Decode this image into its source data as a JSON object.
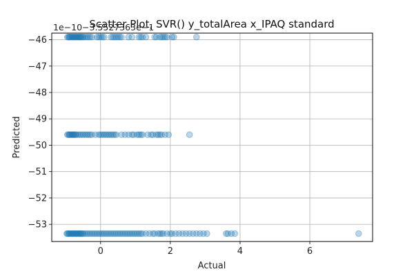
{
  "chart_data": {
    "type": "scatter",
    "title": "Scatter Plot, SVR() y_totalArea x_IPAQ standard",
    "xlabel": "Actual",
    "ylabel": "Predicted",
    "y_offset_label": "1e−10−3.5527363e−1",
    "xlim": [
      -1.4,
      7.8
    ],
    "ylim": [
      -53.65,
      -45.75
    ],
    "xticks": [
      0,
      2,
      4,
      6
    ],
    "xtick_labels": [
      "0",
      "2",
      "4",
      "6"
    ],
    "yticks": [
      -46,
      -47,
      -48,
      -49,
      -50,
      -51,
      -52,
      -53
    ],
    "ytick_labels": [
      "−46",
      "−47",
      "−48",
      "−49",
      "−50",
      "−51",
      "−52",
      "−53"
    ],
    "grid": true,
    "marker_color": "#1f77b4",
    "marker_alpha": 0.3,
    "series": [
      {
        "x": [
          -0.95,
          -0.92,
          -0.9,
          -0.88,
          -0.85,
          -0.82,
          -0.8,
          -0.78,
          -0.75,
          -0.72,
          -0.7,
          -0.68,
          -0.65,
          -0.62,
          -0.6,
          -0.58,
          -0.55,
          -0.52,
          -0.5,
          -0.45,
          -0.4,
          -0.35,
          -0.3,
          -0.25,
          -0.1,
          -0.05,
          0.0,
          0.05,
          0.1,
          0.3,
          0.35,
          0.4,
          0.45,
          0.5,
          0.55,
          0.6,
          0.8,
          0.9,
          1.1,
          1.15,
          1.2,
          1.3,
          1.55,
          1.6,
          1.7,
          1.75,
          1.8,
          1.85,
          1.9,
          2.05,
          2.1,
          2.75
        ],
        "y": [
          -45.9,
          -45.9,
          -45.9,
          -45.9,
          -45.9,
          -45.9,
          -45.9,
          -45.9,
          -45.9,
          -45.9,
          -45.9,
          -45.9,
          -45.9,
          -45.9,
          -45.9,
          -45.9,
          -45.9,
          -45.9,
          -45.9,
          -45.9,
          -45.9,
          -45.9,
          -45.9,
          -45.9,
          -45.9,
          -45.9,
          -45.9,
          -45.9,
          -45.9,
          -45.9,
          -45.9,
          -45.9,
          -45.9,
          -45.9,
          -45.9,
          -45.9,
          -45.9,
          -45.9,
          -45.9,
          -45.9,
          -45.9,
          -45.9,
          -45.9,
          -45.9,
          -45.9,
          -45.9,
          -45.9,
          -45.9,
          -45.9,
          -45.9,
          -45.9,
          -45.9
        ]
      },
      {
        "x": [
          -0.95,
          -0.92,
          -0.9,
          -0.88,
          -0.85,
          -0.82,
          -0.8,
          -0.78,
          -0.75,
          -0.72,
          -0.7,
          -0.65,
          -0.6,
          -0.55,
          -0.5,
          -0.45,
          -0.4,
          -0.35,
          -0.3,
          -0.25,
          -0.15,
          -0.05,
          0.0,
          0.05,
          0.1,
          0.15,
          0.2,
          0.25,
          0.3,
          0.35,
          0.4,
          0.45,
          0.6,
          0.7,
          0.8,
          0.9,
          0.95,
          1.05,
          1.1,
          1.15,
          1.2,
          1.35,
          1.45,
          1.5,
          1.6,
          1.65,
          1.7,
          1.75,
          1.85,
          1.95,
          2.55
        ],
        "y": [
          -49.6,
          -49.6,
          -49.6,
          -49.6,
          -49.6,
          -49.6,
          -49.6,
          -49.6,
          -49.6,
          -49.6,
          -49.6,
          -49.6,
          -49.6,
          -49.6,
          -49.6,
          -49.6,
          -49.6,
          -49.6,
          -49.6,
          -49.6,
          -49.6,
          -49.6,
          -49.6,
          -49.6,
          -49.6,
          -49.6,
          -49.6,
          -49.6,
          -49.6,
          -49.6,
          -49.6,
          -49.6,
          -49.6,
          -49.6,
          -49.6,
          -49.6,
          -49.6,
          -49.6,
          -49.6,
          -49.6,
          -49.6,
          -49.6,
          -49.6,
          -49.6,
          -49.6,
          -49.6,
          -49.6,
          -49.6,
          -49.6,
          -49.6,
          -49.6
        ]
      },
      {
        "x": [
          -0.97,
          -0.95,
          -0.92,
          -0.9,
          -0.88,
          -0.85,
          -0.82,
          -0.8,
          -0.78,
          -0.75,
          -0.72,
          -0.7,
          -0.68,
          -0.65,
          -0.62,
          -0.6,
          -0.58,
          -0.55,
          -0.52,
          -0.5,
          -0.45,
          -0.4,
          -0.35,
          -0.3,
          -0.25,
          -0.2,
          -0.15,
          -0.1,
          -0.05,
          0.0,
          0.05,
          0.1,
          0.15,
          0.2,
          0.25,
          0.3,
          0.35,
          0.4,
          0.45,
          0.5,
          0.55,
          0.6,
          0.65,
          0.7,
          0.75,
          0.8,
          0.85,
          0.9,
          0.95,
          1.0,
          1.05,
          1.1,
          1.15,
          1.2,
          1.3,
          1.4,
          1.5,
          1.55,
          1.65,
          1.7,
          1.75,
          1.8,
          1.9,
          2.0,
          2.05,
          2.15,
          2.25,
          2.35,
          2.45,
          2.55,
          2.65,
          2.75,
          2.85,
          2.95,
          3.05,
          3.6,
          3.65,
          3.75,
          3.85,
          7.4
        ],
        "y": [
          -53.35,
          -53.35,
          -53.35,
          -53.35,
          -53.35,
          -53.35,
          -53.35,
          -53.35,
          -53.35,
          -53.35,
          -53.35,
          -53.35,
          -53.35,
          -53.35,
          -53.35,
          -53.35,
          -53.35,
          -53.35,
          -53.35,
          -53.35,
          -53.35,
          -53.35,
          -53.35,
          -53.35,
          -53.35,
          -53.35,
          -53.35,
          -53.35,
          -53.35,
          -53.35,
          -53.35,
          -53.35,
          -53.35,
          -53.35,
          -53.35,
          -53.35,
          -53.35,
          -53.35,
          -53.35,
          -53.35,
          -53.35,
          -53.35,
          -53.35,
          -53.35,
          -53.35,
          -53.35,
          -53.35,
          -53.35,
          -53.35,
          -53.35,
          -53.35,
          -53.35,
          -53.35,
          -53.35,
          -53.35,
          -53.35,
          -53.35,
          -53.35,
          -53.35,
          -53.35,
          -53.35,
          -53.35,
          -53.35,
          -53.35,
          -53.35,
          -53.35,
          -53.35,
          -53.35,
          -53.35,
          -53.35,
          -53.35,
          -53.35,
          -53.35,
          -53.35,
          -53.35,
          -53.35,
          -53.35,
          -53.35,
          -53.35,
          -53.35
        ]
      }
    ]
  }
}
